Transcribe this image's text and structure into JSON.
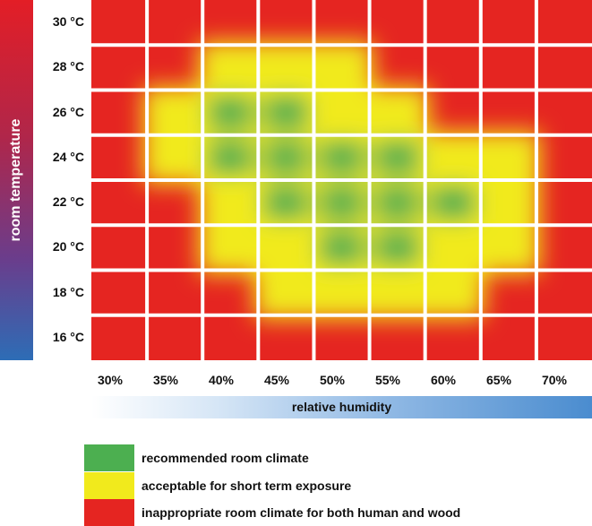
{
  "chart_data": {
    "type": "heatmap",
    "title": "",
    "ylabel": "room temperature",
    "xlabel": "relative humidity",
    "y_ticks": [
      "30 °C",
      "28 °C",
      "26 °C",
      "24 °C",
      "22 °C",
      "20 °C",
      "18 °C",
      "16 °C"
    ],
    "x_ticks": [
      "30%",
      "35%",
      "40%",
      "45%",
      "50%",
      "55%",
      "60%",
      "65%",
      "70%"
    ],
    "x_values": [
      30,
      35,
      40,
      45,
      50,
      55,
      60,
      65,
      70
    ],
    "y_values": [
      30,
      28,
      26,
      24,
      22,
      20,
      18,
      16
    ],
    "categories": [
      "recommended",
      "acceptable",
      "inappropriate"
    ],
    "zones": [
      [
        2,
        2,
        2,
        2,
        2,
        2,
        2,
        2,
        2
      ],
      [
        2,
        2,
        1,
        1,
        1,
        2,
        2,
        2,
        2
      ],
      [
        2,
        1,
        0,
        0,
        1,
        1,
        2,
        2,
        2
      ],
      [
        2,
        1,
        0,
        0,
        0,
        0,
        1,
        1,
        2
      ],
      [
        2,
        2,
        1,
        0,
        0,
        0,
        0,
        1,
        2
      ],
      [
        2,
        2,
        1,
        1,
        0,
        0,
        1,
        1,
        2
      ],
      [
        2,
        2,
        2,
        1,
        1,
        1,
        1,
        2,
        2
      ],
      [
        2,
        2,
        2,
        2,
        2,
        2,
        2,
        2,
        2
      ]
    ],
    "legend_position": "bottom",
    "legend": [
      {
        "label": "recommended room climate",
        "color": "#4caf50"
      },
      {
        "label": "acceptable for short term exposure",
        "color": "#f1ea1c"
      },
      {
        "label": "inappropriate room climate for both human and wood",
        "color": "#e52521"
      }
    ]
  }
}
